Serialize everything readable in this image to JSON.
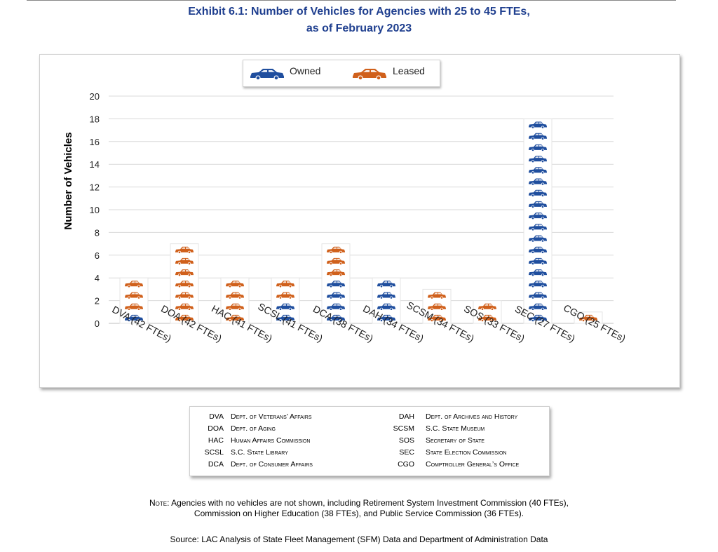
{
  "title_line1": "Exhibit 6.1: Number of Vehicles for Agencies with 25 to 45 FTEs,",
  "title_line2": "as of February 2023",
  "colors": {
    "owned": "#1f4e9e",
    "leased": "#d0601b",
    "title": "#1f3f8f"
  },
  "chart_data": {
    "type": "bar",
    "stacked": true,
    "ylabel": "Number of Vehicles",
    "xlabel": "",
    "ylim": [
      0,
      20
    ],
    "yticks": [
      0,
      2,
      4,
      6,
      8,
      10,
      12,
      14,
      16,
      18,
      20
    ],
    "grid": true,
    "legend_position": "top-center",
    "categories": [
      "DVA (42 FTEs)",
      "DOA (42 FTEs)",
      "HAC (41 FTEs)",
      "SCSL (41 FTEs)",
      "DCA (38 FTEs)",
      "DAH (34 FTEs)",
      "SCSM (34 FTEs)",
      "SOS (33 FTEs)",
      "SEC (27 FTEs)",
      "CGO (25 FTEs)"
    ],
    "series": [
      {
        "name": "Owned",
        "icon": "car-icon",
        "values": [
          1,
          0,
          0,
          2,
          4,
          4,
          0,
          0,
          18,
          0
        ]
      },
      {
        "name": "Leased",
        "icon": "car-icon",
        "values": [
          3,
          7,
          4,
          2,
          3,
          0,
          3,
          2,
          0,
          1
        ]
      }
    ]
  },
  "abbreviations_left": [
    {
      "code": "DVA",
      "name": "Dept. of Veterans’ Affairs"
    },
    {
      "code": "DOA",
      "name": "Dept. of Aging"
    },
    {
      "code": "HAC",
      "name": "Human Affairs Commission"
    },
    {
      "code": "SCSL",
      "name": "S.C. State Library"
    },
    {
      "code": "DCA",
      "name": "Dept. of Consumer Affairs"
    }
  ],
  "abbreviations_right": [
    {
      "code": "DAH",
      "name": "Dept. of Archives and History"
    },
    {
      "code": "SCSM",
      "name": "S.C. State Museum"
    },
    {
      "code": "SOS",
      "name": "Secretary of State"
    },
    {
      "code": "SEC",
      "name": "State Election Commission"
    },
    {
      "code": "CGO",
      "name": "Comptroller General’s Office"
    }
  ],
  "note_label": "Note:",
  "note_line1": " Agencies with no vehicles are not shown, including Retirement System Investment Commission (40 FTEs),",
  "note_line2": "Commission on Higher Education (38 FTEs), and Public Service Commission (36 FTEs).",
  "source": "Source: LAC Analysis of State Fleet Management (SFM) Data and Department of Administration Data"
}
